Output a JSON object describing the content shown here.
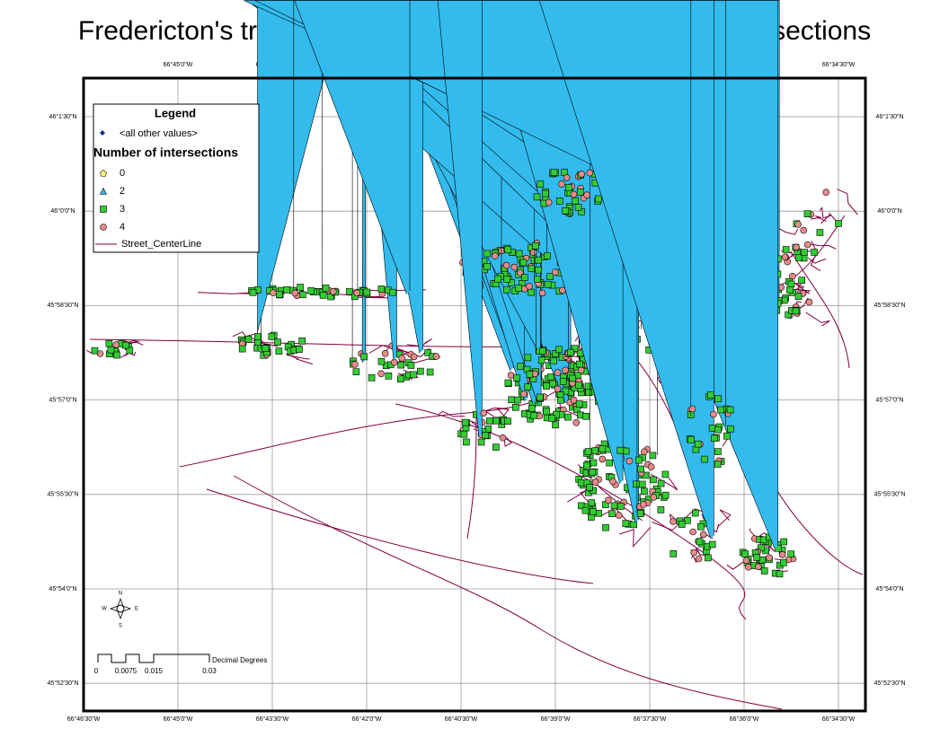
{
  "title": "Fredericton's traffic signal classified by the number of intersections",
  "longitude_labels": [
    "66°46'30\"W",
    "66°45'0\"W",
    "66°43'30\"W",
    "66°42'0\"W",
    "66°40'30\"W",
    "66°39'0\"W",
    "66°37'30\"W",
    "66°36'0\"W",
    "66°34'30\"W"
  ],
  "latitude_labels": [
    "46°1'30\"N",
    "46°0'0\"N",
    "45°58'30\"N",
    "45°57'0\"N",
    "45°55'30\"N",
    "45°54'0\"N",
    "45°52'30\"N"
  ],
  "legend": {
    "title": "Legend",
    "other": "<all other values>",
    "field": "Number of intersections",
    "classes": [
      {
        "label": "0",
        "color": "#ffff66"
      },
      {
        "label": "2",
        "color": "#33bbee"
      },
      {
        "label": "3",
        "color": "#33cc33"
      },
      {
        "label": "4",
        "color": "#e88a8a"
      }
    ],
    "line": "Street_CenterLine",
    "line_color": "#800040"
  },
  "scale_bar": {
    "labels": [
      "0",
      "0.0075",
      "0.015",
      "0.03"
    ],
    "unit": "Decimal Degrees"
  },
  "compass": {
    "n": "N",
    "s": "S",
    "e": "E",
    "w": "W"
  }
}
